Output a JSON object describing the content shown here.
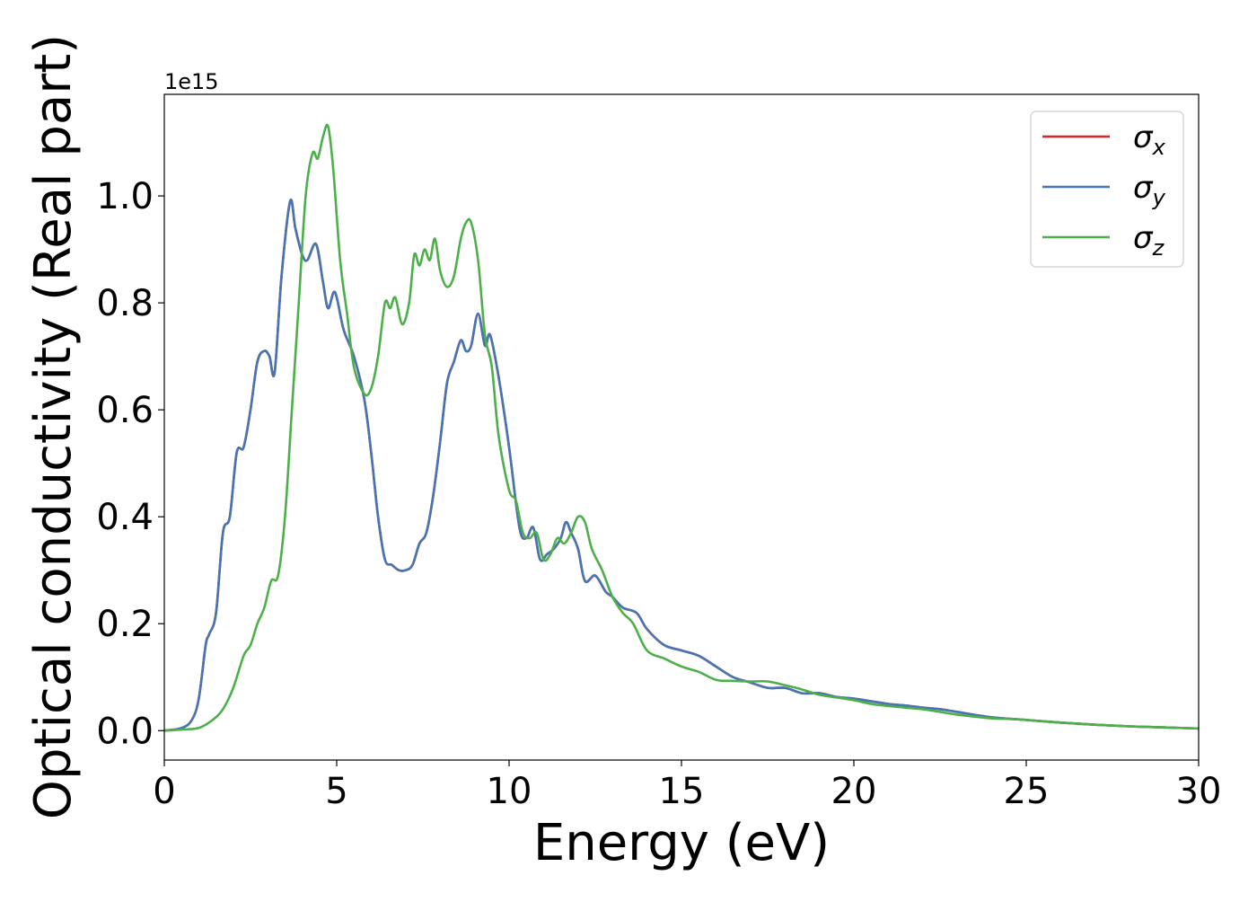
{
  "chart_data": {
    "type": "line",
    "title": "",
    "xlabel": "Energy (eV)",
    "ylabel": "Optical conductivity (Real part)",
    "y_offset_label": "1e15",
    "xlim": [
      0,
      30
    ],
    "ylim": [
      -0.055,
      1.19
    ],
    "x_ticks": [
      0,
      5,
      10,
      15,
      20,
      25,
      30
    ],
    "x_tick_labels": [
      "0",
      "5",
      "10",
      "15",
      "20",
      "25",
      "30"
    ],
    "y_ticks": [
      0.0,
      0.2,
      0.4,
      0.6,
      0.8,
      1.0
    ],
    "y_tick_labels": [
      "0.0",
      "0.2",
      "0.4",
      "0.6",
      "0.8",
      "1.0"
    ],
    "grid": false,
    "legend_position": "top-right",
    "series": [
      {
        "name": "σx",
        "label_base": "σ",
        "label_sub": "x",
        "color": "#d62728",
        "x": [
          0,
          0.5,
          0.8,
          1.0,
          1.2,
          1.3,
          1.5,
          1.7,
          1.9,
          2.1,
          2.3,
          2.5,
          2.7,
          2.9,
          3.05,
          3.2,
          3.4,
          3.65,
          3.8,
          4.0,
          4.15,
          4.4,
          4.6,
          4.75,
          4.95,
          5.2,
          5.5,
          5.8,
          6.0,
          6.2,
          6.4,
          6.6,
          6.8,
          7.0,
          7.2,
          7.4,
          7.6,
          7.8,
          8.0,
          8.2,
          8.4,
          8.6,
          8.75,
          8.9,
          9.1,
          9.3,
          9.45,
          9.7,
          10.0,
          10.3,
          10.5,
          10.7,
          10.9,
          11.1,
          11.3,
          11.5,
          11.65,
          11.8,
          12.0,
          12.2,
          12.5,
          12.8,
          13.0,
          13.3,
          13.7,
          14.0,
          14.5,
          15.0,
          15.5,
          16.0,
          16.5,
          17.0,
          17.5,
          18.0,
          18.5,
          19.0,
          19.5,
          20.0,
          20.5,
          21.0,
          21.5,
          22.0,
          22.5,
          23.0,
          24.0,
          25.0,
          26.0,
          27.0,
          28.0,
          29.0,
          30.0
        ],
        "y": [
          0.0,
          0.005,
          0.02,
          0.06,
          0.16,
          0.18,
          0.22,
          0.37,
          0.4,
          0.52,
          0.53,
          0.6,
          0.69,
          0.71,
          0.7,
          0.67,
          0.85,
          0.99,
          0.94,
          0.89,
          0.88,
          0.91,
          0.84,
          0.79,
          0.82,
          0.75,
          0.7,
          0.62,
          0.52,
          0.4,
          0.32,
          0.31,
          0.3,
          0.3,
          0.31,
          0.35,
          0.37,
          0.44,
          0.54,
          0.65,
          0.69,
          0.73,
          0.71,
          0.72,
          0.78,
          0.72,
          0.74,
          0.66,
          0.53,
          0.38,
          0.36,
          0.38,
          0.32,
          0.33,
          0.34,
          0.36,
          0.39,
          0.37,
          0.34,
          0.28,
          0.29,
          0.26,
          0.25,
          0.23,
          0.22,
          0.19,
          0.16,
          0.15,
          0.14,
          0.12,
          0.1,
          0.09,
          0.08,
          0.08,
          0.07,
          0.07,
          0.063,
          0.06,
          0.055,
          0.05,
          0.047,
          0.043,
          0.04,
          0.035,
          0.025,
          0.02,
          0.015,
          0.011,
          0.008,
          0.006,
          0.004
        ]
      },
      {
        "name": "σy",
        "label_base": "σ",
        "label_sub": "y",
        "color": "#4575b4",
        "x": [
          0,
          0.5,
          0.8,
          1.0,
          1.2,
          1.3,
          1.5,
          1.7,
          1.9,
          2.1,
          2.3,
          2.5,
          2.7,
          2.9,
          3.05,
          3.2,
          3.4,
          3.65,
          3.8,
          4.0,
          4.15,
          4.4,
          4.6,
          4.75,
          4.95,
          5.2,
          5.5,
          5.8,
          6.0,
          6.2,
          6.4,
          6.6,
          6.8,
          7.0,
          7.2,
          7.4,
          7.6,
          7.8,
          8.0,
          8.2,
          8.4,
          8.6,
          8.75,
          8.9,
          9.1,
          9.3,
          9.45,
          9.7,
          10.0,
          10.3,
          10.5,
          10.7,
          10.9,
          11.1,
          11.3,
          11.5,
          11.65,
          11.8,
          12.0,
          12.2,
          12.5,
          12.8,
          13.0,
          13.3,
          13.7,
          14.0,
          14.5,
          15.0,
          15.5,
          16.0,
          16.5,
          17.0,
          17.5,
          18.0,
          18.5,
          19.0,
          19.5,
          20.0,
          20.5,
          21.0,
          21.5,
          22.0,
          22.5,
          23.0,
          24.0,
          25.0,
          26.0,
          27.0,
          28.0,
          29.0,
          30.0
        ],
        "y": [
          0.0,
          0.005,
          0.02,
          0.06,
          0.16,
          0.18,
          0.22,
          0.37,
          0.4,
          0.52,
          0.53,
          0.6,
          0.69,
          0.71,
          0.7,
          0.67,
          0.85,
          0.99,
          0.94,
          0.89,
          0.88,
          0.91,
          0.84,
          0.79,
          0.82,
          0.75,
          0.7,
          0.62,
          0.52,
          0.4,
          0.32,
          0.31,
          0.3,
          0.3,
          0.31,
          0.35,
          0.37,
          0.44,
          0.54,
          0.65,
          0.69,
          0.73,
          0.71,
          0.72,
          0.78,
          0.72,
          0.74,
          0.66,
          0.53,
          0.38,
          0.36,
          0.38,
          0.32,
          0.33,
          0.34,
          0.36,
          0.39,
          0.37,
          0.34,
          0.28,
          0.29,
          0.26,
          0.25,
          0.23,
          0.22,
          0.19,
          0.16,
          0.15,
          0.14,
          0.12,
          0.1,
          0.09,
          0.08,
          0.08,
          0.07,
          0.07,
          0.063,
          0.06,
          0.055,
          0.05,
          0.047,
          0.043,
          0.04,
          0.035,
          0.025,
          0.02,
          0.015,
          0.011,
          0.008,
          0.006,
          0.004
        ]
      },
      {
        "name": "σz",
        "label_base": "σ",
        "label_sub": "z",
        "color": "#4daf4a",
        "x": [
          0,
          0.5,
          1.0,
          1.4,
          1.7,
          2.0,
          2.3,
          2.5,
          2.7,
          2.9,
          3.1,
          3.3,
          3.5,
          3.7,
          3.9,
          4.1,
          4.3,
          4.45,
          4.6,
          4.75,
          4.9,
          5.1,
          5.3,
          5.5,
          5.8,
          6.0,
          6.2,
          6.4,
          6.55,
          6.7,
          6.9,
          7.1,
          7.25,
          7.4,
          7.55,
          7.7,
          7.85,
          8.0,
          8.2,
          8.4,
          8.6,
          8.75,
          8.9,
          9.1,
          9.3,
          9.5,
          9.7,
          10.0,
          10.2,
          10.4,
          10.6,
          10.8,
          11.0,
          11.2,
          11.4,
          11.6,
          11.8,
          12.0,
          12.2,
          12.4,
          12.7,
          13.0,
          13.3,
          13.6,
          14.0,
          14.5,
          15.0,
          15.5,
          16.0,
          16.5,
          17.0,
          17.5,
          18.0,
          18.5,
          19.0,
          19.5,
          20.0,
          20.5,
          21.0,
          21.5,
          22.0,
          22.5,
          23.0,
          24.0,
          24.5,
          25.0,
          26.0,
          27.0,
          28.0,
          29.0,
          30.0
        ],
        "y": [
          0.0,
          0.002,
          0.005,
          0.02,
          0.04,
          0.08,
          0.14,
          0.16,
          0.2,
          0.23,
          0.28,
          0.29,
          0.4,
          0.6,
          0.8,
          1.0,
          1.08,
          1.07,
          1.11,
          1.13,
          1.05,
          0.88,
          0.78,
          0.68,
          0.63,
          0.64,
          0.7,
          0.8,
          0.79,
          0.81,
          0.76,
          0.8,
          0.89,
          0.87,
          0.9,
          0.88,
          0.92,
          0.86,
          0.83,
          0.85,
          0.92,
          0.95,
          0.95,
          0.88,
          0.74,
          0.68,
          0.55,
          0.45,
          0.43,
          0.37,
          0.36,
          0.37,
          0.32,
          0.33,
          0.36,
          0.35,
          0.37,
          0.4,
          0.39,
          0.34,
          0.3,
          0.25,
          0.22,
          0.2,
          0.15,
          0.135,
          0.12,
          0.11,
          0.095,
          0.093,
          0.092,
          0.092,
          0.085,
          0.077,
          0.067,
          0.062,
          0.057,
          0.05,
          0.046,
          0.043,
          0.04,
          0.035,
          0.03,
          0.023,
          0.022,
          0.02,
          0.015,
          0.011,
          0.008,
          0.006,
          0.004
        ]
      }
    ]
  }
}
